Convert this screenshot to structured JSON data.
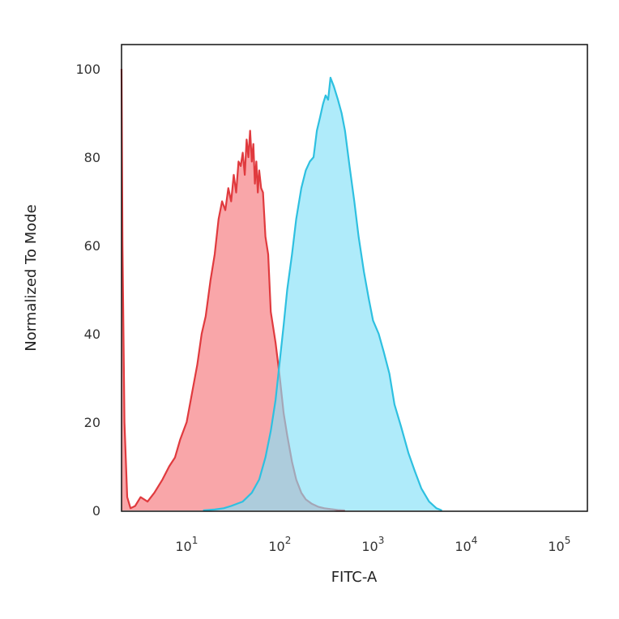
{
  "chart_data": {
    "type": "area",
    "title": "",
    "xlabel": "FITC-A",
    "ylabel": "Normalized To Mode",
    "xscale": "log",
    "xlim": [
      2,
      200000
    ],
    "ylim": [
      0,
      105
    ],
    "x_ticks": [
      {
        "value": 10,
        "base": "10",
        "exp": "1"
      },
      {
        "value": 100,
        "base": "10",
        "exp": "2"
      },
      {
        "value": 1000,
        "base": "10",
        "exp": "3"
      },
      {
        "value": 10000,
        "base": "10",
        "exp": "4"
      },
      {
        "value": 100000,
        "base": "10",
        "exp": "5"
      }
    ],
    "y_ticks": [
      {
        "value": 0,
        "label": "0"
      },
      {
        "value": 20,
        "label": "20"
      },
      {
        "value": 40,
        "label": "40"
      },
      {
        "value": 60,
        "label": "60"
      },
      {
        "value": 80,
        "label": "80"
      },
      {
        "value": 100,
        "label": "100"
      }
    ],
    "grid": false,
    "legend": "none",
    "series": [
      {
        "color_line": "#e03a3e",
        "color_fill": "#f7888c",
        "x": [
          2,
          2.05,
          2.15,
          2.3,
          2.5,
          2.8,
          3.2,
          3.8,
          4.5,
          5.5,
          6.5,
          7.5,
          8.5,
          10,
          11.5,
          13,
          14.5,
          16,
          18,
          20,
          22,
          24,
          26,
          28,
          30,
          32,
          34,
          36,
          38,
          40,
          42,
          44,
          46,
          48,
          50,
          52,
          54,
          56,
          58,
          60,
          63,
          66,
          70,
          75,
          80,
          90,
          100,
          110,
          120,
          135,
          150,
          170,
          190,
          220,
          260,
          300,
          350,
          420,
          500
        ],
        "y": [
          100,
          60,
          20,
          3,
          0.5,
          1,
          3,
          2,
          4,
          7,
          10,
          12,
          16,
          20,
          27,
          33,
          40,
          44,
          52,
          58,
          66,
          70,
          68,
          73,
          70,
          76,
          72,
          79,
          78,
          81,
          76,
          84,
          80,
          86,
          79,
          83,
          74,
          79,
          72,
          77,
          73,
          72,
          62,
          58,
          45,
          38,
          30,
          22,
          17,
          11,
          7,
          4,
          2.5,
          1.5,
          0.8,
          0.5,
          0.3,
          0.1,
          0
        ]
      },
      {
        "color_line": "#2ec0e0",
        "color_fill": "#84e0f8",
        "x": [
          15,
          20,
          25,
          30,
          40,
          50,
          60,
          70,
          80,
          90,
          100,
          110,
          120,
          135,
          150,
          170,
          190,
          210,
          230,
          250,
          270,
          290,
          310,
          330,
          350,
          380,
          420,
          460,
          500,
          560,
          630,
          700,
          800,
          900,
          1000,
          1150,
          1300,
          1500,
          1700,
          2000,
          2400,
          2800,
          3300,
          4000,
          4800,
          5500
        ],
        "y": [
          0,
          0.2,
          0.5,
          1,
          2,
          4,
          7,
          12,
          18,
          25,
          34,
          42,
          50,
          58,
          66,
          73,
          77,
          79,
          80,
          86,
          89,
          92,
          94,
          93,
          98,
          96,
          93,
          90,
          86,
          78,
          70,
          62,
          54,
          48,
          43,
          40,
          36,
          31,
          24,
          19,
          13,
          9,
          5,
          2,
          0.5,
          0
        ]
      }
    ]
  }
}
